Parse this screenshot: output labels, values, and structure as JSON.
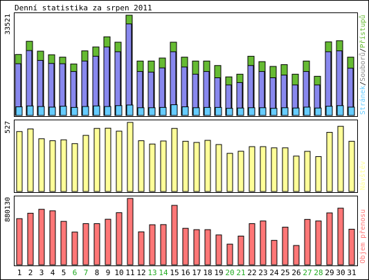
{
  "title": "Denní statistika za srpen 2011",
  "chart_data": [
    {
      "type": "bar",
      "name": "hits-files-pages",
      "categories": [
        "1",
        "2",
        "3",
        "4",
        "5",
        "6",
        "7",
        "8",
        "9",
        "10",
        "11",
        "12",
        "13",
        "14",
        "15",
        "16",
        "17",
        "18",
        "19",
        "20",
        "21",
        "22",
        "23",
        "24",
        "25",
        "26",
        "27",
        "28",
        "29",
        "30",
        "31"
      ],
      "ymax_label": "33521",
      "ylim": [
        0,
        33521
      ],
      "legend": {
        "pages": "Stránek",
        "files": "Souborů",
        "hits": "Přístupů",
        "sep": "/"
      },
      "series": [
        {
          "name": "Přístupů",
          "color": "#66bb33",
          "values": [
            20400,
            24800,
            21500,
            20300,
            19500,
            17200,
            21600,
            22900,
            26300,
            24500,
            33521,
            18200,
            18200,
            19200,
            24500,
            19500,
            18200,
            18200,
            16700,
            12900,
            13800,
            19800,
            18000,
            16400,
            17000,
            13800,
            18200,
            13100,
            24600,
            25000,
            19500
          ]
        },
        {
          "name": "Souborů",
          "color": "#8888ee",
          "values": [
            17300,
            21700,
            18400,
            17400,
            17300,
            14700,
            18200,
            19800,
            22900,
            21300,
            30600,
            14700,
            14500,
            15900,
            21300,
            16200,
            13800,
            14700,
            12600,
            10200,
            11000,
            16700,
            14700,
            12600,
            13500,
            10200,
            14700,
            10200,
            21300,
            21600,
            15800
          ]
        },
        {
          "name": "Stránek",
          "color": "#66ccff",
          "values": [
            1500,
            1800,
            1600,
            1400,
            1700,
            1300,
            1600,
            1800,
            1600,
            1900,
            2100,
            1200,
            1200,
            1300,
            2200,
            1500,
            1200,
            1300,
            1300,
            1000,
            1100,
            1200,
            1200,
            1000,
            1200,
            1100,
            1400,
            1100,
            1700,
            1900,
            1400
          ]
        }
      ]
    },
    {
      "type": "bar",
      "name": "visits",
      "categories": [
        "1",
        "2",
        "3",
        "4",
        "5",
        "6",
        "7",
        "8",
        "9",
        "10",
        "11",
        "12",
        "13",
        "14",
        "15",
        "16",
        "17",
        "18",
        "19",
        "20",
        "21",
        "22",
        "23",
        "24",
        "25",
        "26",
        "27",
        "28",
        "29",
        "30",
        "31"
      ],
      "ymax_label": "527",
      "ylim": [
        0,
        527
      ],
      "legend": {
        "visits": "Návštěv"
      },
      "series": [
        {
          "name": "Návštěv",
          "color": "#ffff99",
          "values": [
            457,
            477,
            402,
            387,
            394,
            365,
            428,
            481,
            483,
            460,
            527,
            387,
            362,
            385,
            481,
            383,
            374,
            390,
            358,
            291,
            307,
            342,
            342,
            333,
            333,
            270,
            306,
            266,
            451,
            497,
            383
          ]
        }
      ]
    },
    {
      "type": "bar",
      "name": "transfer",
      "categories": [
        "1",
        "2",
        "3",
        "4",
        "5",
        "6",
        "7",
        "8",
        "9",
        "10",
        "11",
        "12",
        "13",
        "14",
        "15",
        "16",
        "17",
        "18",
        "19",
        "20",
        "21",
        "22",
        "23",
        "24",
        "25",
        "26",
        "27",
        "28",
        "29",
        "30",
        "31"
      ],
      "ymax_label": "880130",
      "ylim": [
        0,
        880130
      ],
      "legend": {
        "kbytes": "Objem přenosu"
      },
      "series": [
        {
          "name": "Objem přenosu",
          "color": "#ff7777",
          "values": [
            612000,
            684000,
            736000,
            716000,
            576000,
            434000,
            546000,
            546000,
            604000,
            691000,
            880130,
            437000,
            531000,
            533000,
            788000,
            484000,
            466000,
            466000,
            396000,
            274000,
            381000,
            546000,
            581000,
            324000,
            499000,
            256000,
            602000,
            581000,
            688000,
            751000,
            472000
          ]
        }
      ]
    }
  ],
  "weekend_days": [
    "6",
    "7",
    "13",
    "14",
    "20",
    "21",
    "27",
    "28"
  ],
  "colors": {
    "frame": "#000000",
    "panel_bg": "#ffffff",
    "weekday_label": "#000000",
    "weekend_label": "#22aa22",
    "legend_sep": "#000000"
  }
}
